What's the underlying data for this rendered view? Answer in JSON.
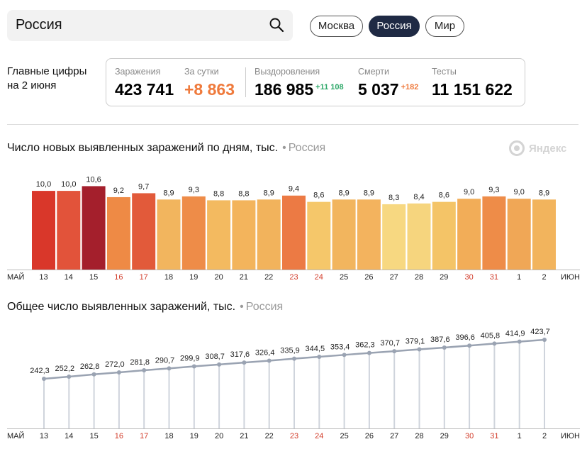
{
  "search": {
    "value": "Россия"
  },
  "region_tabs": [
    {
      "label": "Москва",
      "active": false
    },
    {
      "label": "Россия",
      "active": true
    },
    {
      "label": "Мир",
      "active": false
    }
  ],
  "summary": {
    "title": "Главные цифры на 2 июня",
    "infections_label": "Заражения",
    "infections_value": "423 741",
    "per_day_label": "За сутки",
    "per_day_value": "+8 863",
    "recovered_label": "Выздоровления",
    "recovered_value": "186 985",
    "recovered_delta": "+11 108",
    "deaths_label": "Смерти",
    "deaths_value": "5 037",
    "deaths_delta": "+182",
    "tests_label": "Тесты",
    "tests_value": "11 151 622"
  },
  "branding": {
    "yandex": "Яндекс"
  },
  "colors": {
    "active_pill": "#1f2a44",
    "orange": "#ef7a3c",
    "green": "#2fa96a",
    "weekend_red": "#d23c2a",
    "line": "#9aa3b2"
  },
  "chart_data": [
    {
      "type": "bar",
      "title": "Число новых выявленных заражений по дням, тыс.",
      "subtitle": "Россия",
      "month_start": "МАЙ",
      "month_end": "ИЮН",
      "categories": [
        "13",
        "14",
        "15",
        "16",
        "17",
        "18",
        "19",
        "20",
        "21",
        "22",
        "23",
        "24",
        "25",
        "26",
        "27",
        "28",
        "29",
        "30",
        "31",
        "1",
        "2"
      ],
      "weekend": [
        false,
        false,
        false,
        true,
        true,
        false,
        false,
        false,
        false,
        false,
        true,
        true,
        false,
        false,
        false,
        false,
        false,
        true,
        true,
        false,
        false
      ],
      "values": [
        10.0,
        10.0,
        10.6,
        9.2,
        9.7,
        8.9,
        9.3,
        8.8,
        8.8,
        8.9,
        9.4,
        8.6,
        8.9,
        8.9,
        8.3,
        8.4,
        8.6,
        9.0,
        9.3,
        9.0,
        8.9
      ],
      "labels": [
        "10,0",
        "10,0",
        "10,6",
        "9,2",
        "9,7",
        "8,9",
        "9,3",
        "8,8",
        "8,8",
        "8,9",
        "9,4",
        "8,6",
        "8,9",
        "8,9",
        "8,3",
        "8,4",
        "8,6",
        "9,0",
        "9,3",
        "9,0",
        "8,9"
      ],
      "colors": [
        "#d9372a",
        "#e2533a",
        "#a41f2c",
        "#ee8a45",
        "#e25a3a",
        "#f2b55e",
        "#ee8c48",
        "#f3ba60",
        "#f3b45c",
        "#f2b35c",
        "#ec7a44",
        "#f5c76a",
        "#f2b55e",
        "#f3b35e",
        "#f7d881",
        "#f6d57e",
        "#f4c467",
        "#f2ad58",
        "#ee8c48",
        "#f0a756",
        "#f2b45d"
      ],
      "ylim": [
        0,
        11
      ]
    },
    {
      "type": "line",
      "title": "Общее число выявленных заражений, тыс.",
      "subtitle": "Россия",
      "month_start": "МАЙ",
      "month_end": "ИЮН",
      "categories": [
        "13",
        "14",
        "15",
        "16",
        "17",
        "18",
        "19",
        "20",
        "21",
        "22",
        "23",
        "24",
        "25",
        "26",
        "27",
        "28",
        "29",
        "30",
        "31",
        "1",
        "2"
      ],
      "weekend": [
        false,
        false,
        false,
        true,
        true,
        false,
        false,
        false,
        false,
        false,
        true,
        true,
        false,
        false,
        false,
        false,
        false,
        true,
        true,
        false,
        false
      ],
      "values": [
        242.3,
        252.2,
        262.8,
        272.0,
        281.8,
        290.7,
        299.9,
        308.7,
        317.6,
        326.4,
        335.9,
        344.5,
        353.4,
        362.3,
        370.7,
        379.1,
        387.6,
        396.6,
        405.8,
        414.9,
        423.7
      ],
      "labels": [
        "242,3",
        "252,2",
        "262,8",
        "272,0",
        "281,8",
        "290,7",
        "299,9",
        "308,7",
        "317,6",
        "326,4",
        "335,9",
        "344,5",
        "353,4",
        "362,3",
        "370,7",
        "379,1",
        "387,6",
        "396,6",
        "405,8",
        "414,9",
        "423,7"
      ]
    }
  ]
}
